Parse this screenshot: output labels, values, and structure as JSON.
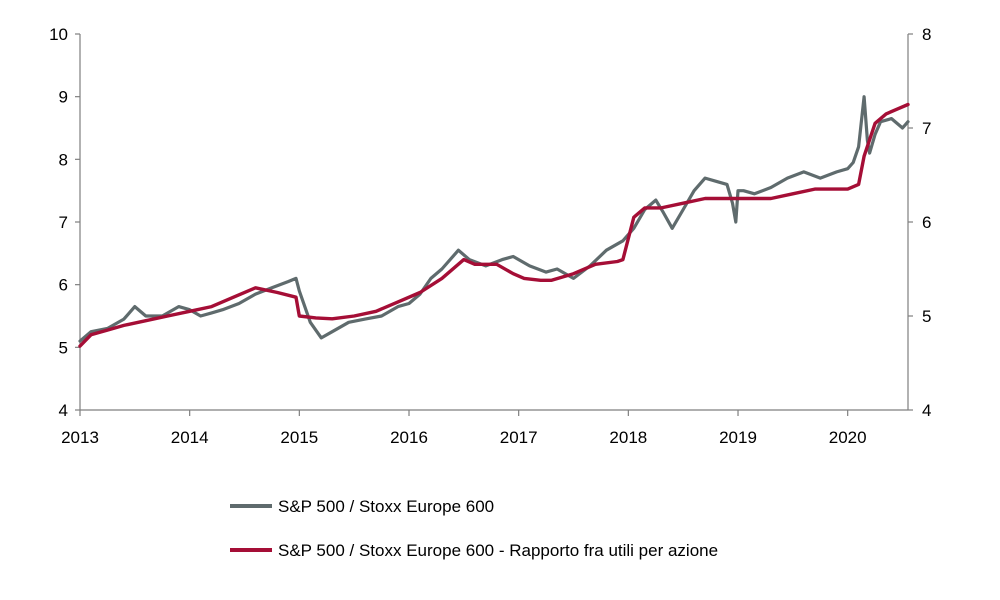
{
  "chart_data": {
    "type": "line",
    "title": "",
    "xlabel": "",
    "ylabel": "",
    "x_ticks": [
      "2013",
      "2014",
      "2015",
      "2016",
      "2017",
      "2018",
      "2019",
      "2020"
    ],
    "xlim": [
      2013.0,
      2020.55
    ],
    "y_left": {
      "lim": [
        4,
        10
      ],
      "ticks": [
        "4",
        "5",
        "6",
        "7",
        "8",
        "9",
        "10"
      ]
    },
    "y_right": {
      "lim": [
        4,
        8
      ],
      "ticks": [
        "4",
        "5",
        "6",
        "7",
        "8"
      ]
    },
    "grid": false,
    "legend_position": "bottom",
    "series": [
      {
        "name": "S&P 500 / Stoxx Europe 600",
        "axis": "left",
        "color": "#5f6b6d",
        "x": [
          2013.0,
          2013.1,
          2013.25,
          2013.4,
          2013.5,
          2013.6,
          2013.75,
          2013.9,
          2014.0,
          2014.1,
          2014.2,
          2014.3,
          2014.45,
          2014.6,
          2014.75,
          2014.9,
          2014.97,
          2015.0,
          2015.1,
          2015.2,
          2015.3,
          2015.45,
          2015.6,
          2015.75,
          2015.9,
          2016.0,
          2016.1,
          2016.2,
          2016.3,
          2016.45,
          2016.55,
          2016.7,
          2016.85,
          2016.95,
          2017.1,
          2017.25,
          2017.35,
          2017.5,
          2017.65,
          2017.8,
          2017.95,
          2018.05,
          2018.15,
          2018.25,
          2018.32,
          2018.4,
          2018.5,
          2018.6,
          2018.7,
          2018.8,
          2018.9,
          2018.95,
          2018.98,
          2019.0,
          2019.05,
          2019.15,
          2019.3,
          2019.45,
          2019.6,
          2019.75,
          2019.9,
          2020.0,
          2020.05,
          2020.1,
          2020.15,
          2020.18,
          2020.2,
          2020.25,
          2020.3,
          2020.4,
          2020.5,
          2020.55
        ],
        "y": [
          5.1,
          5.25,
          5.3,
          5.45,
          5.65,
          5.5,
          5.5,
          5.65,
          5.6,
          5.5,
          5.55,
          5.6,
          5.7,
          5.85,
          5.95,
          6.05,
          6.1,
          5.9,
          5.4,
          5.15,
          5.25,
          5.4,
          5.45,
          5.5,
          5.65,
          5.7,
          5.85,
          6.1,
          6.25,
          6.55,
          6.4,
          6.3,
          6.4,
          6.45,
          6.3,
          6.2,
          6.25,
          6.1,
          6.3,
          6.55,
          6.7,
          6.9,
          7.2,
          7.35,
          7.15,
          6.9,
          7.2,
          7.5,
          7.7,
          7.65,
          7.6,
          7.3,
          7.0,
          7.5,
          7.5,
          7.45,
          7.55,
          7.7,
          7.8,
          7.7,
          7.8,
          7.85,
          7.95,
          8.2,
          9.0,
          8.3,
          8.1,
          8.4,
          8.6,
          8.65,
          8.5,
          8.6
        ]
      },
      {
        "name": "S&P 500 / Stoxx Europe 600 - Rapporto fra utili per azione",
        "axis": "right",
        "color": "#a50e36",
        "x": [
          2013.0,
          2013.1,
          2013.25,
          2013.4,
          2013.6,
          2013.8,
          2014.0,
          2014.2,
          2014.4,
          2014.6,
          2014.8,
          2014.97,
          2015.0,
          2015.15,
          2015.3,
          2015.5,
          2015.7,
          2015.9,
          2016.1,
          2016.3,
          2016.5,
          2016.6,
          2016.8,
          2016.95,
          2017.05,
          2017.2,
          2017.3,
          2017.5,
          2017.7,
          2017.9,
          2017.95,
          2018.05,
          2018.15,
          2018.3,
          2018.5,
          2018.7,
          2018.9,
          2019.1,
          2019.3,
          2019.5,
          2019.7,
          2019.9,
          2020.0,
          2020.1,
          2020.15,
          2020.25,
          2020.35,
          2020.45,
          2020.55
        ],
        "y": [
          4.68,
          4.8,
          4.85,
          4.9,
          4.95,
          5.0,
          5.05,
          5.1,
          5.2,
          5.3,
          5.25,
          5.2,
          5.0,
          4.98,
          4.97,
          5.0,
          5.05,
          5.15,
          5.25,
          5.4,
          5.6,
          5.55,
          5.55,
          5.45,
          5.4,
          5.38,
          5.38,
          5.45,
          5.55,
          5.58,
          5.6,
          6.05,
          6.15,
          6.15,
          6.2,
          6.25,
          6.25,
          6.25,
          6.25,
          6.3,
          6.35,
          6.35,
          6.35,
          6.4,
          6.7,
          7.05,
          7.15,
          7.2,
          7.25
        ]
      }
    ]
  }
}
